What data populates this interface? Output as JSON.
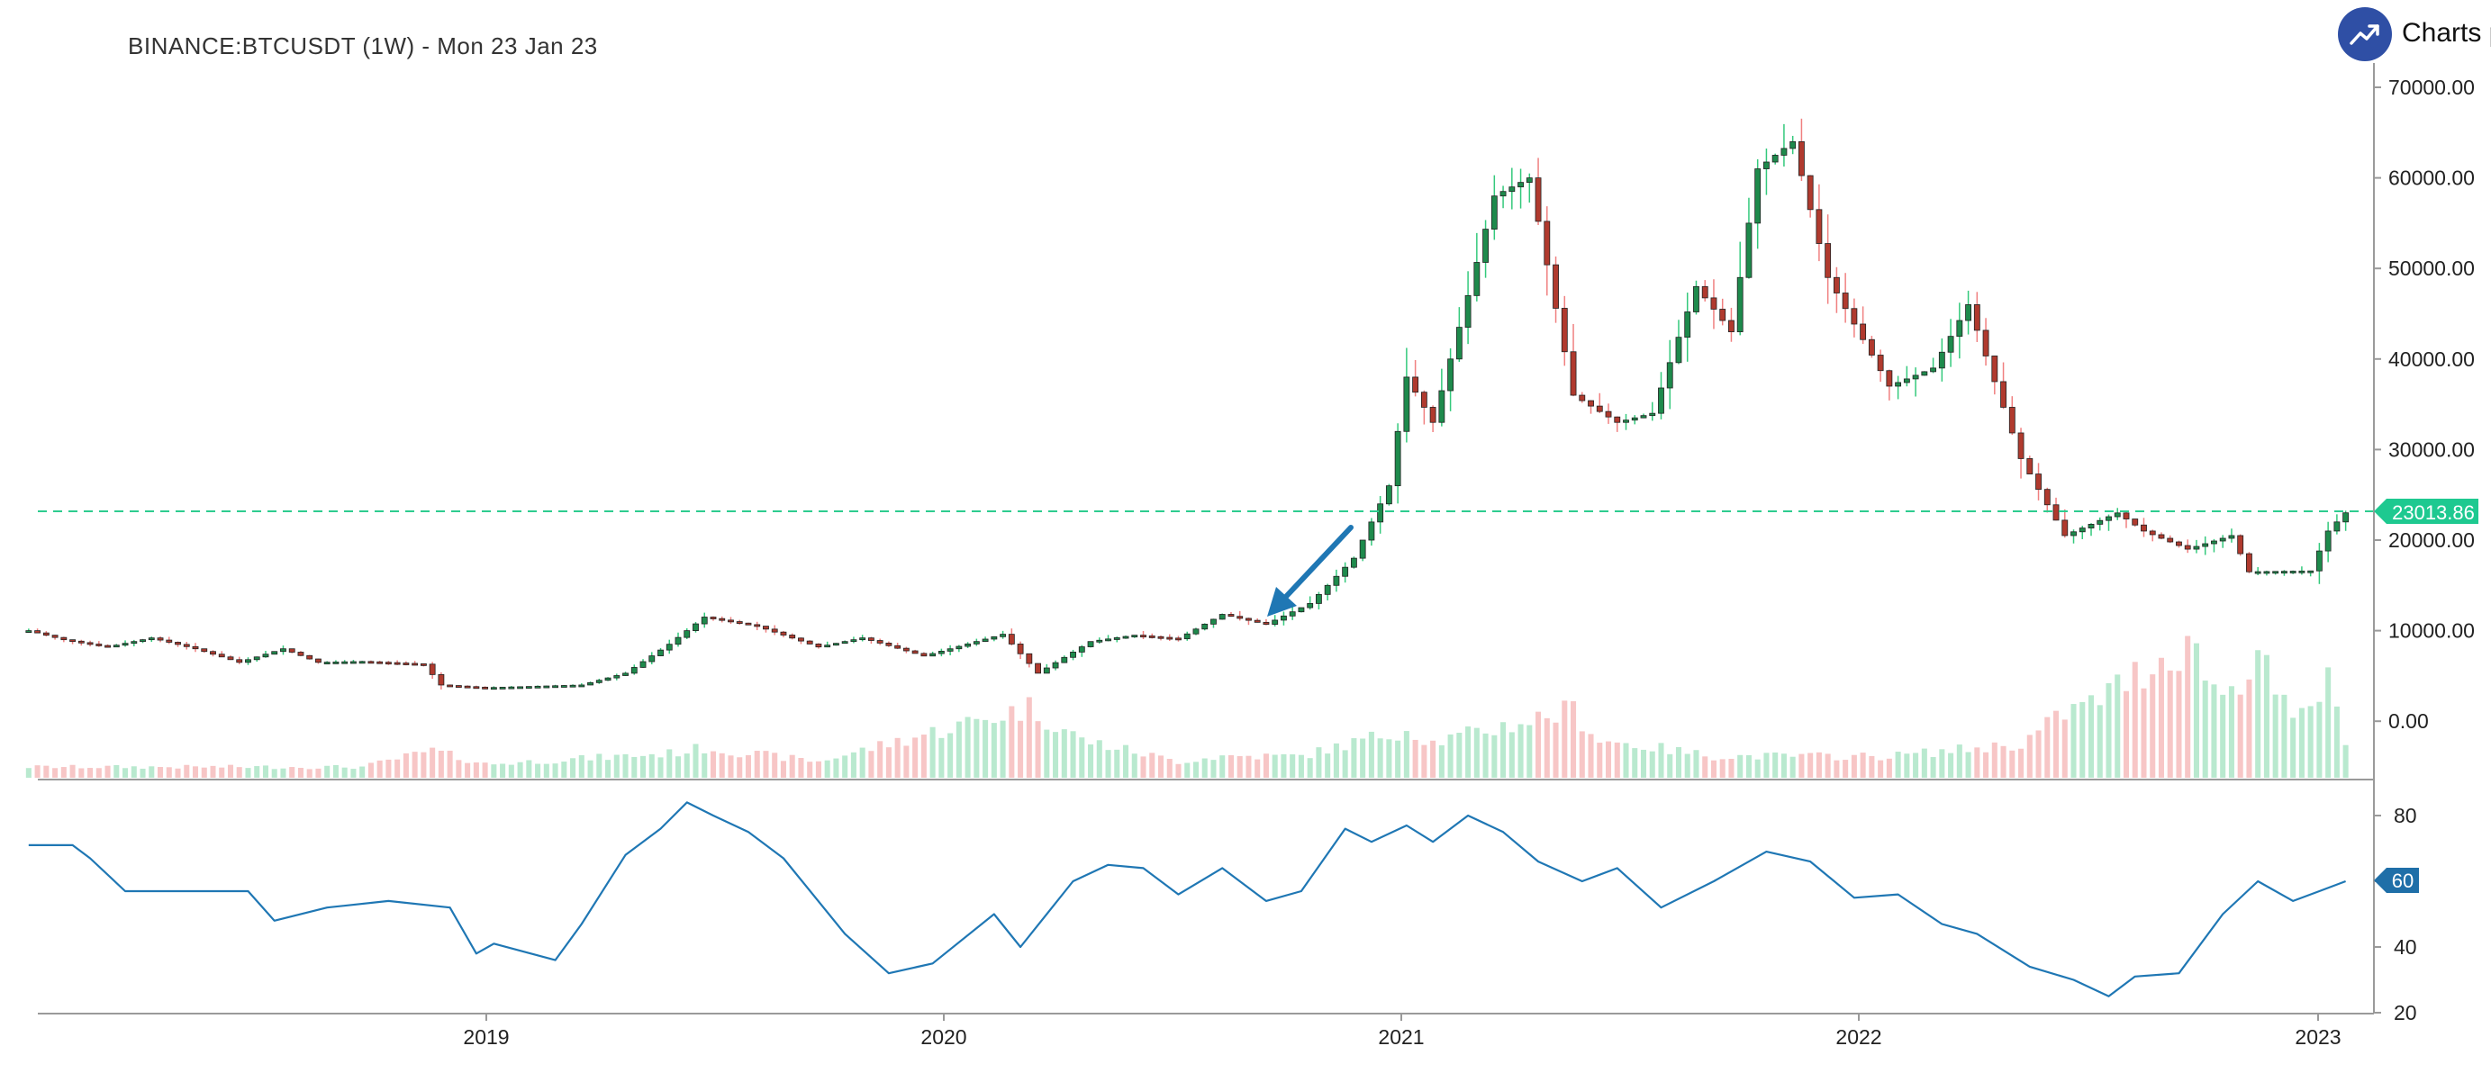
{
  "title": "BINANCE:BTCUSDT (1W) - Mon 23 Jan 23",
  "brand": {
    "text": "Charts p",
    "icon": "trending-up-icon",
    "color": "#2f4fa5"
  },
  "colors": {
    "up": "#1e8a4c",
    "down": "#b03a2e",
    "upVol": "#b9e9cf",
    "downVol": "#f7c6c6",
    "line": "#1f77b4",
    "priceLine": "#2ecc8f"
  },
  "chart_data": [
    {
      "type": "candlestick",
      "title": "BINANCE:BTCUSDT (1W) - Mon 23 Jan 23",
      "x_ticks": [
        "2019",
        "2020",
        "2021",
        "2022",
        "2023"
      ],
      "y_ticks": [
        "70000.00",
        "60000.00",
        "50000.00",
        "40000.00",
        "30000.00",
        "20000.00",
        "10000.00",
        "0.00"
      ],
      "ylim": [
        -6500,
        74000
      ],
      "last_price": 23013.86,
      "last_price_label": "23013.86",
      "annotation": "arrow pointing to breakout near 11000 (Sep 2020)",
      "close_path": [
        [
          "2018-01-01",
          10000
        ],
        [
          "2018-01-29",
          9000
        ],
        [
          "2018-03-05",
          8200
        ],
        [
          "2018-04-09",
          9200
        ],
        [
          "2018-05-14",
          8000
        ],
        [
          "2018-06-18",
          6500
        ],
        [
          "2018-07-23",
          8000
        ],
        [
          "2018-08-20",
          6500
        ],
        [
          "2018-09-24",
          6600
        ],
        [
          "2018-11-12",
          6300
        ],
        [
          "2018-11-26",
          4000
        ],
        [
          "2018-12-31",
          3700
        ],
        [
          "2019-03-18",
          4000
        ],
        [
          "2019-04-22",
          5300
        ],
        [
          "2019-05-27",
          8500
        ],
        [
          "2019-06-24",
          11500
        ],
        [
          "2019-08-05",
          10500
        ],
        [
          "2019-09-23",
          8200
        ],
        [
          "2019-10-28",
          9200
        ],
        [
          "2019-12-16",
          7200
        ],
        [
          "2020-02-17",
          9600
        ],
        [
          "2020-03-16",
          5300
        ],
        [
          "2020-04-27",
          8800
        ],
        [
          "2020-06-01",
          9500
        ],
        [
          "2020-07-06",
          9100
        ],
        [
          "2020-08-10",
          11800
        ],
        [
          "2020-09-14",
          10700
        ],
        [
          "2020-10-19",
          13000
        ],
        [
          "2020-11-23",
          18000
        ],
        [
          "2020-12-21",
          26000
        ],
        [
          "2021-01-04",
          38000
        ],
        [
          "2021-01-25",
          33000
        ],
        [
          "2021-02-22",
          47000
        ],
        [
          "2021-03-15",
          58000
        ],
        [
          "2021-04-12",
          60000
        ],
        [
          "2021-05-17",
          36000
        ],
        [
          "2021-06-21",
          33000
        ],
        [
          "2021-07-19",
          34000
        ],
        [
          "2021-08-23",
          48000
        ],
        [
          "2021-09-20",
          43000
        ],
        [
          "2021-10-11",
          61000
        ],
        [
          "2021-11-08",
          64000
        ],
        [
          "2021-12-06",
          49000
        ],
        [
          "2022-01-24",
          37000
        ],
        [
          "2022-02-28",
          39000
        ],
        [
          "2022-03-28",
          46000
        ],
        [
          "2022-05-09",
          29000
        ],
        [
          "2022-06-13",
          20500
        ],
        [
          "2022-07-25",
          23000
        ],
        [
          "2022-08-15",
          21000
        ],
        [
          "2022-09-19",
          19000
        ],
        [
          "2022-10-24",
          20500
        ],
        [
          "2022-11-07",
          16500
        ],
        [
          "2022-12-26",
          16600
        ],
        [
          "2023-01-09",
          21000
        ],
        [
          "2023-01-23",
          23013
        ]
      ],
      "volume": {
        "unit": "relative 0-100",
        "up_ticks": [
          "2020-03-09",
          "2022-09-19",
          "2022-11-14"
        ],
        "path": [
          [
            "2018-01-01",
            8
          ],
          [
            "2018-09-24",
            8
          ],
          [
            "2018-11-19",
            20
          ],
          [
            "2019-01-01",
            10
          ],
          [
            "2019-05-27",
            18
          ],
          [
            "2019-06-24",
            22
          ],
          [
            "2019-09-23",
            12
          ],
          [
            "2020-03-09",
            52
          ],
          [
            "2020-04-20",
            28
          ],
          [
            "2020-07-06",
            12
          ],
          [
            "2020-08-10",
            16
          ],
          [
            "2020-10-12",
            16
          ],
          [
            "2021-01-04",
            36
          ],
          [
            "2021-01-25",
            26
          ],
          [
            "2021-05-17",
            50
          ],
          [
            "2021-06-07",
            28
          ],
          [
            "2021-09-06",
            16
          ],
          [
            "2022-01-24",
            16
          ],
          [
            "2022-05-09",
            25
          ],
          [
            "2022-06-13",
            48
          ],
          [
            "2022-07-04",
            55
          ],
          [
            "2022-08-15",
            80
          ],
          [
            "2022-09-19",
            100
          ],
          [
            "2022-10-17",
            60
          ],
          [
            "2022-11-14",
            90
          ],
          [
            "2022-12-12",
            40
          ],
          [
            "2023-01-09",
            70
          ],
          [
            "2023-01-23",
            30
          ]
        ]
      }
    },
    {
      "type": "line",
      "name": "oscillator",
      "y_ticks": [
        "80",
        "60",
        "40",
        "20"
      ],
      "ylim": [
        20,
        88
      ],
      "last_value": 60,
      "last_value_label": "60",
      "series": [
        [
          "2018-01-01",
          71
        ],
        [
          "2018-02-05",
          71
        ],
        [
          "2018-02-19",
          67
        ],
        [
          "2018-03-19",
          57
        ],
        [
          "2018-06-25",
          57
        ],
        [
          "2018-07-16",
          48
        ],
        [
          "2018-08-27",
          52
        ],
        [
          "2018-10-15",
          54
        ],
        [
          "2018-12-03",
          52
        ],
        [
          "2018-12-24",
          38
        ],
        [
          "2019-01-07",
          41
        ],
        [
          "2019-02-25",
          36
        ],
        [
          "2019-03-18",
          47
        ],
        [
          "2019-04-22",
          68
        ],
        [
          "2019-05-20",
          76
        ],
        [
          "2019-06-10",
          84
        ],
        [
          "2019-07-01",
          80
        ],
        [
          "2019-07-29",
          75
        ],
        [
          "2019-08-26",
          67
        ],
        [
          "2019-10-14",
          44
        ],
        [
          "2019-11-18",
          32
        ],
        [
          "2019-12-23",
          35
        ],
        [
          "2020-02-10",
          50
        ],
        [
          "2020-03-02",
          40
        ],
        [
          "2020-04-13",
          60
        ],
        [
          "2020-05-11",
          65
        ],
        [
          "2020-06-08",
          64
        ],
        [
          "2020-07-06",
          56
        ],
        [
          "2020-08-10",
          64
        ],
        [
          "2020-09-14",
          54
        ],
        [
          "2020-10-12",
          57
        ],
        [
          "2020-11-16",
          76
        ],
        [
          "2020-12-07",
          72
        ],
        [
          "2021-01-04",
          77
        ],
        [
          "2021-01-25",
          72
        ],
        [
          "2021-02-22",
          80
        ],
        [
          "2021-03-22",
          75
        ],
        [
          "2021-04-19",
          66
        ],
        [
          "2021-05-24",
          60
        ],
        [
          "2021-06-21",
          64
        ],
        [
          "2021-07-26",
          52
        ],
        [
          "2021-09-06",
          60
        ],
        [
          "2021-10-18",
          69
        ],
        [
          "2021-11-22",
          66
        ],
        [
          "2021-12-27",
          55
        ],
        [
          "2022-01-31",
          56
        ],
        [
          "2022-03-07",
          47
        ],
        [
          "2022-04-04",
          44
        ],
        [
          "2022-05-16",
          34
        ],
        [
          "2022-06-20",
          30
        ],
        [
          "2022-07-18",
          25
        ],
        [
          "2022-08-08",
          31
        ],
        [
          "2022-09-12",
          32
        ],
        [
          "2022-10-17",
          50
        ],
        [
          "2022-11-14",
          60
        ],
        [
          "2022-12-12",
          54
        ],
        [
          "2023-01-02",
          57
        ],
        [
          "2023-01-23",
          60
        ]
      ]
    }
  ]
}
